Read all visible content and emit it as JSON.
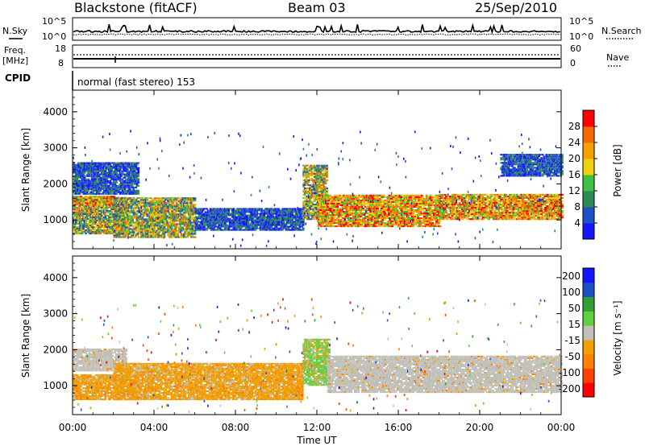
{
  "header": {
    "station": "Blackstone (fitACF)",
    "beam": "Beam 03",
    "date": "25/Sep/2010"
  },
  "top_strip": {
    "nsky_label": "N.Sky",
    "nsky_ticks": [
      "10^5",
      "10^0"
    ],
    "nsearch_label": "N.Search",
    "nsearch_ticks": [
      "10^5",
      "10^0"
    ],
    "freq_label": "Freq.",
    "freq_unit": "[MHz]",
    "freq_ticks": [
      "18",
      "8"
    ],
    "nave_label": "Nave",
    "nave_ticks": [
      "60",
      "0"
    ],
    "cpid_label": "CPID",
    "cpid_text": "normal (fast stereo) 153"
  },
  "colors": {
    "power_scale": [
      "#1414ff",
      "#2050c8",
      "#2e8b57",
      "#40c040",
      "#f0d010",
      "#f5a000",
      "#f56a00",
      "#ff0000"
    ],
    "velocity_scale": [
      "#ff0000",
      "#ff4000",
      "#ff8000",
      "#f0a000",
      "#c0c0b8",
      "#60d040",
      "#30a030",
      "#2050c8",
      "#1414ff"
    ],
    "ground_scatter": "#c0c0b8"
  },
  "chart_data": [
    {
      "type": "heatmap",
      "name": "Power",
      "ylabel": "Slant Range [km]",
      "ylim": [
        200,
        4600
      ],
      "yticks": [
        "1000",
        "2000",
        "3000",
        "4000"
      ],
      "xlim": [
        "00:00",
        "24:00"
      ],
      "colorbar": {
        "label": "Power [dB]",
        "ticks": [
          "4",
          "8",
          "12",
          "16",
          "20",
          "24",
          "28"
        ],
        "range": [
          0,
          32
        ]
      },
      "scatter_regions": [
        {
          "t0": 0.0,
          "t1": 2.6,
          "r0": 600,
          "r1": 1600,
          "level": "mid-high"
        },
        {
          "t0": 0.0,
          "t1": 2.0,
          "r0": 1400,
          "r1": 1650,
          "level": "high"
        },
        {
          "t0": 0.0,
          "t1": 3.2,
          "r0": 1700,
          "r1": 2600,
          "level": "low"
        },
        {
          "t0": 2.0,
          "t1": 6.0,
          "r0": 500,
          "r1": 1600,
          "level": "mid-high"
        },
        {
          "t0": 6.0,
          "t1": 11.3,
          "r0": 700,
          "r1": 1300,
          "level": "low"
        },
        {
          "t0": 11.3,
          "t1": 12.5,
          "r0": 1000,
          "r1": 2500,
          "level": "mid-high"
        },
        {
          "t0": 12.0,
          "t1": 18.0,
          "r0": 800,
          "r1": 1700,
          "level": "high"
        },
        {
          "t0": 18.0,
          "t1": 24.0,
          "r0": 1000,
          "r1": 1700,
          "level": "high"
        },
        {
          "t0": 21.0,
          "t1": 24.0,
          "r0": 2200,
          "r1": 2800,
          "level": "low"
        }
      ]
    },
    {
      "type": "heatmap",
      "name": "Velocity",
      "ylabel": "Slant Range [km]",
      "ylim": [
        200,
        4600
      ],
      "yticks": [
        "1000",
        "2000",
        "3000",
        "4000"
      ],
      "xlabel": "Time UT",
      "xticks": [
        "00:00",
        "04:00",
        "08:00",
        "12:00",
        "16:00",
        "20:00",
        "00:00"
      ],
      "xlim": [
        "00:00",
        "24:00"
      ],
      "colorbar": {
        "label": "Velocity [m s⁻¹]",
        "ticks": [
          "200",
          "100",
          "50",
          "15",
          "-15",
          "-50",
          "-100",
          "-200"
        ],
        "range": [
          -250,
          250
        ]
      },
      "scatter_regions": [
        {
          "t0": 0.0,
          "t1": 2.6,
          "r0": 1400,
          "r1": 2000,
          "level": "ground"
        },
        {
          "t0": 0.0,
          "t1": 3.2,
          "r0": 600,
          "r1": 1300,
          "level": "orange"
        },
        {
          "t0": 2.0,
          "t1": 11.3,
          "r0": 600,
          "r1": 1600,
          "level": "orange"
        },
        {
          "t0": 11.3,
          "t1": 12.6,
          "r0": 1000,
          "r1": 2300,
          "level": "green"
        },
        {
          "t0": 12.5,
          "t1": 24.0,
          "r0": 800,
          "r1": 1800,
          "level": "ground"
        }
      ]
    }
  ]
}
